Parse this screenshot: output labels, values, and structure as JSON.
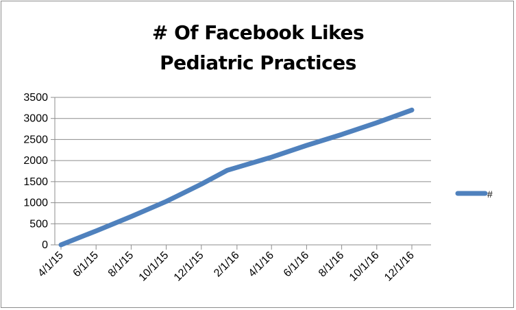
{
  "chart_data": {
    "type": "line",
    "title": [
      "# Of Facebook Likes",
      "Pediatric Practices"
    ],
    "xlabel": "",
    "ylabel": "",
    "x_ticks": [
      "4/1/15",
      "6/1/15",
      "8/1/15",
      "10/1/15",
      "12/1/15",
      "2/1/16",
      "4/1/16",
      "6/1/16",
      "8/1/16",
      "10/1/16",
      "12/1/16"
    ],
    "y_ticks": [
      0,
      500,
      1000,
      1500,
      2000,
      2500,
      3000,
      3500
    ],
    "ylim": [
      0,
      3500
    ],
    "xlim": [
      "4/1/15",
      "12/1/16"
    ],
    "grid": true,
    "legend_position": "right",
    "series": [
      {
        "name": "#",
        "color": "#4f81bd",
        "points": [
          {
            "x": "4/1/15",
            "y": 0
          },
          {
            "x": "6/1/15",
            "y": 330
          },
          {
            "x": "8/1/15",
            "y": 670
          },
          {
            "x": "10/1/15",
            "y": 1030
          },
          {
            "x": "12/1/15",
            "y": 1440
          },
          {
            "x": "1/15/16",
            "y": 1770
          },
          {
            "x": "4/1/16",
            "y": 2080
          },
          {
            "x": "6/1/16",
            "y": 2360
          },
          {
            "x": "8/1/16",
            "y": 2620
          },
          {
            "x": "10/1/16",
            "y": 2900
          },
          {
            "x": "12/1/16",
            "y": 3200
          }
        ]
      }
    ]
  }
}
